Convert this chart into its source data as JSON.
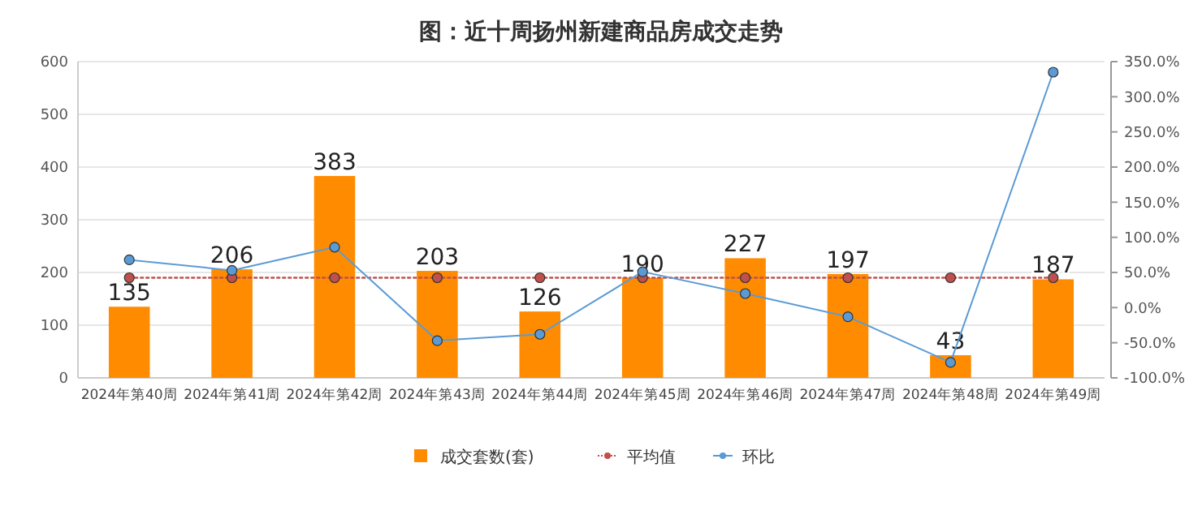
{
  "chart_data": {
    "type": "bar",
    "title": "图：近十周扬州新建商品房成交走势",
    "categories": [
      "2024年第40周",
      "2024年第41周",
      "2024年第42周",
      "2024年第43周",
      "2024年第44周",
      "2024年第45周",
      "2024年第46周",
      "2024年第47周",
      "2024年第48周",
      "2024年第49周"
    ],
    "series": [
      {
        "name": "成交套数(套)",
        "color": "#ff8c00",
        "values": [
          135,
          206,
          383,
          203,
          126,
          190,
          227,
          197,
          43,
          187
        ],
        "value_labels": [
          "135",
          "206",
          "383",
          "203",
          "126",
          "190",
          "227",
          "197",
          "43",
          "187"
        ]
      },
      {
        "name": "平均值",
        "type": "line",
        "color": "#c0504d",
        "line_style": "dotted",
        "marker": "circle",
        "values": [
          190,
          190,
          190,
          190,
          190,
          190,
          190,
          190,
          190,
          190
        ]
      },
      {
        "name": "环比",
        "type": "line",
        "axis": "y2",
        "color": "#5b9bd5",
        "line_style": "solid",
        "marker": "circle",
        "values": [
          68,
          53,
          86,
          -47,
          -38,
          51,
          20,
          -13,
          -78,
          335
        ]
      }
    ],
    "ylim": [
      0,
      600
    ],
    "yticks": [
      0,
      100,
      200,
      300,
      400,
      500,
      600
    ],
    "y2lim": [
      -100,
      350
    ],
    "y2ticks": [
      {
        "value": -100,
        "label": "-100.0%"
      },
      {
        "value": -50,
        "label": "-50.0%"
      },
      {
        "value": 0,
        "label": "0.0%"
      },
      {
        "value": 50,
        "label": "50.0%"
      },
      {
        "value": 100,
        "label": "100.0%"
      },
      {
        "value": 150,
        "label": "150.0%"
      },
      {
        "value": 200,
        "label": "200.0%"
      },
      {
        "value": 250,
        "label": "250.0%"
      },
      {
        "value": 300,
        "label": "300.0%"
      },
      {
        "value": 350,
        "label": "350.0%"
      }
    ],
    "grid": "y",
    "legend": "bottom"
  }
}
